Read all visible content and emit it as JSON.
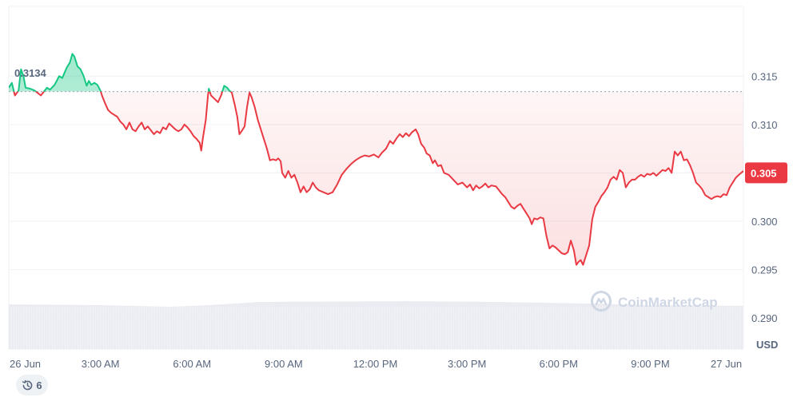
{
  "chart_data": {
    "type": "line",
    "currency_label": "USD",
    "brand": "CoinMarketCap",
    "reference_value": 0.3134,
    "reference_label": "0.3134",
    "current_value": 0.305,
    "current_label": "0.305",
    "ylim": [
      0.2868,
      0.3222
    ],
    "y_ticks": [
      {
        "value": 0.315,
        "label": "0.315"
      },
      {
        "value": 0.31,
        "label": "0.310"
      },
      {
        "value": 0.305,
        "label": "0.305"
      },
      {
        "value": 0.3,
        "label": "0.300"
      },
      {
        "value": 0.295,
        "label": "0.295"
      },
      {
        "value": 0.29,
        "label": "0.290"
      }
    ],
    "x_ticks": [
      {
        "hour": 0,
        "label": "26 Jun"
      },
      {
        "hour": 3,
        "label": "3:00 AM"
      },
      {
        "hour": 6,
        "label": "6:00 AM"
      },
      {
        "hour": 9,
        "label": "9:00 AM"
      },
      {
        "hour": 12,
        "label": "12:00 PM"
      },
      {
        "hour": 15,
        "label": "3:00 PM"
      },
      {
        "hour": 18,
        "label": "6:00 PM"
      },
      {
        "hour": 21,
        "label": "9:00 PM"
      },
      {
        "hour": 24,
        "label": "27 Jun"
      }
    ],
    "x_range_hours": [
      0,
      24.05
    ],
    "colors": {
      "up": "#16c784",
      "down": "#ea3943",
      "grid": "#eff2f5",
      "axis_text": "#58667e",
      "volume": "#e6e9ee"
    },
    "series": [
      {
        "values": [
          [
            0.0,
            0.3138
          ],
          [
            0.1,
            0.3143
          ],
          [
            0.2,
            0.313
          ],
          [
            0.32,
            0.3135
          ],
          [
            0.4,
            0.3157
          ],
          [
            0.48,
            0.315
          ],
          [
            0.55,
            0.3138
          ],
          [
            0.7,
            0.3137
          ],
          [
            0.85,
            0.3135
          ],
          [
            1.05,
            0.313
          ],
          [
            1.25,
            0.3138
          ],
          [
            1.35,
            0.3136
          ],
          [
            1.5,
            0.3141
          ],
          [
            1.65,
            0.315
          ],
          [
            1.75,
            0.3148
          ],
          [
            1.9,
            0.3159
          ],
          [
            2.0,
            0.3164
          ],
          [
            2.08,
            0.3173
          ],
          [
            2.15,
            0.317
          ],
          [
            2.25,
            0.316
          ],
          [
            2.35,
            0.3157
          ],
          [
            2.45,
            0.315
          ],
          [
            2.55,
            0.314
          ],
          [
            2.62,
            0.3145
          ],
          [
            2.7,
            0.3141
          ],
          [
            2.8,
            0.3143
          ],
          [
            2.9,
            0.3141
          ],
          [
            3.0,
            0.3135
          ],
          [
            3.05,
            0.313
          ],
          [
            3.15,
            0.3122
          ],
          [
            3.25,
            0.3115
          ],
          [
            3.35,
            0.3112
          ],
          [
            3.45,
            0.311
          ],
          [
            3.55,
            0.3108
          ],
          [
            3.65,
            0.3103
          ],
          [
            3.75,
            0.31
          ],
          [
            3.85,
            0.3095
          ],
          [
            3.95,
            0.3102
          ],
          [
            4.05,
            0.3095
          ],
          [
            4.15,
            0.3093
          ],
          [
            4.25,
            0.3098
          ],
          [
            4.35,
            0.3102
          ],
          [
            4.45,
            0.3095
          ],
          [
            4.55,
            0.3098
          ],
          [
            4.65,
            0.3094
          ],
          [
            4.75,
            0.309
          ],
          [
            4.85,
            0.3093
          ],
          [
            4.95,
            0.3091
          ],
          [
            5.05,
            0.3097
          ],
          [
            5.15,
            0.3095
          ],
          [
            5.25,
            0.3101
          ],
          [
            5.35,
            0.3098
          ],
          [
            5.45,
            0.3095
          ],
          [
            5.55,
            0.3093
          ],
          [
            5.65,
            0.3095
          ],
          [
            5.75,
            0.31
          ],
          [
            5.85,
            0.3097
          ],
          [
            5.95,
            0.3093
          ],
          [
            6.05,
            0.3088
          ],
          [
            6.15,
            0.3085
          ],
          [
            6.25,
            0.3081
          ],
          [
            6.3,
            0.3073
          ],
          [
            6.35,
            0.3085
          ],
          [
            6.45,
            0.3105
          ],
          [
            6.52,
            0.313
          ],
          [
            6.55,
            0.3137
          ],
          [
            6.62,
            0.313
          ],
          [
            6.75,
            0.3126
          ],
          [
            6.85,
            0.3123
          ],
          [
            6.95,
            0.313
          ],
          [
            7.05,
            0.314
          ],
          [
            7.15,
            0.3138
          ],
          [
            7.22,
            0.3135
          ],
          [
            7.3,
            0.3133
          ],
          [
            7.4,
            0.312
          ],
          [
            7.48,
            0.3108
          ],
          [
            7.55,
            0.309
          ],
          [
            7.62,
            0.3093
          ],
          [
            7.72,
            0.3098
          ],
          [
            7.8,
            0.3118
          ],
          [
            7.88,
            0.3133
          ],
          [
            7.95,
            0.3128
          ],
          [
            8.05,
            0.3118
          ],
          [
            8.15,
            0.3105
          ],
          [
            8.25,
            0.3095
          ],
          [
            8.35,
            0.3085
          ],
          [
            8.45,
            0.3075
          ],
          [
            8.55,
            0.3063
          ],
          [
            8.65,
            0.3064
          ],
          [
            8.75,
            0.3063
          ],
          [
            8.82,
            0.3065
          ],
          [
            8.9,
            0.3062
          ],
          [
            8.95,
            0.305
          ],
          [
            9.05,
            0.3045
          ],
          [
            9.15,
            0.3052
          ],
          [
            9.25,
            0.3045
          ],
          [
            9.35,
            0.3048
          ],
          [
            9.45,
            0.304
          ],
          [
            9.55,
            0.303
          ],
          [
            9.65,
            0.3036
          ],
          [
            9.75,
            0.303
          ],
          [
            9.85,
            0.3033
          ],
          [
            9.95,
            0.304
          ],
          [
            10.05,
            0.3035
          ],
          [
            10.15,
            0.3032
          ],
          [
            10.3,
            0.303
          ],
          [
            10.45,
            0.3028
          ],
          [
            10.6,
            0.303
          ],
          [
            10.75,
            0.3038
          ],
          [
            10.9,
            0.3048
          ],
          [
            11.05,
            0.3054
          ],
          [
            11.2,
            0.3059
          ],
          [
            11.35,
            0.3063
          ],
          [
            11.5,
            0.3066
          ],
          [
            11.65,
            0.3068
          ],
          [
            11.8,
            0.3067
          ],
          [
            11.95,
            0.3069
          ],
          [
            12.1,
            0.3066
          ],
          [
            12.22,
            0.3071
          ],
          [
            12.35,
            0.3075
          ],
          [
            12.48,
            0.3083
          ],
          [
            12.58,
            0.308
          ],
          [
            12.7,
            0.3086
          ],
          [
            12.8,
            0.309
          ],
          [
            12.9,
            0.3087
          ],
          [
            13.0,
            0.3091
          ],
          [
            13.1,
            0.3088
          ],
          [
            13.2,
            0.3092
          ],
          [
            13.32,
            0.3095
          ],
          [
            13.4,
            0.309
          ],
          [
            13.5,
            0.308
          ],
          [
            13.6,
            0.3076
          ],
          [
            13.68,
            0.307
          ],
          [
            13.78,
            0.3068
          ],
          [
            13.88,
            0.306
          ],
          [
            13.95,
            0.3063
          ],
          [
            14.05,
            0.3057
          ],
          [
            14.15,
            0.3058
          ],
          [
            14.25,
            0.305
          ],
          [
            14.4,
            0.3048
          ],
          [
            14.55,
            0.3043
          ],
          [
            14.7,
            0.3038
          ],
          [
            14.85,
            0.304
          ],
          [
            15.0,
            0.3035
          ],
          [
            15.1,
            0.3038
          ],
          [
            15.2,
            0.3032
          ],
          [
            15.3,
            0.3037
          ],
          [
            15.4,
            0.3034
          ],
          [
            15.5,
            0.3036
          ],
          [
            15.6,
            0.3039
          ],
          [
            15.7,
            0.3035
          ],
          [
            15.8,
            0.3037
          ],
          [
            15.95,
            0.3036
          ],
          [
            16.05,
            0.3032
          ],
          [
            16.15,
            0.3028
          ],
          [
            16.25,
            0.3025
          ],
          [
            16.35,
            0.302
          ],
          [
            16.45,
            0.3015
          ],
          [
            16.55,
            0.3013
          ],
          [
            16.65,
            0.3016
          ],
          [
            16.75,
            0.3018
          ],
          [
            16.85,
            0.3013
          ],
          [
            16.95,
            0.3008
          ],
          [
            17.05,
            0.3003
          ],
          [
            17.12,
            0.2997
          ],
          [
            17.2,
            0.3003
          ],
          [
            17.3,
            0.3002
          ],
          [
            17.4,
            0.3004
          ],
          [
            17.5,
            0.3003
          ],
          [
            17.6,
            0.2985
          ],
          [
            17.7,
            0.2972
          ],
          [
            17.8,
            0.2975
          ],
          [
            17.9,
            0.2973
          ],
          [
            18.0,
            0.297
          ],
          [
            18.1,
            0.2967
          ],
          [
            18.2,
            0.2966
          ],
          [
            18.3,
            0.2968
          ],
          [
            18.4,
            0.298
          ],
          [
            18.5,
            0.297
          ],
          [
            18.58,
            0.2955
          ],
          [
            18.65,
            0.2958
          ],
          [
            18.72,
            0.296
          ],
          [
            18.8,
            0.2955
          ],
          [
            18.9,
            0.2965
          ],
          [
            19.0,
            0.2975
          ],
          [
            19.1,
            0.3002
          ],
          [
            19.2,
            0.3015
          ],
          [
            19.3,
            0.302
          ],
          [
            19.4,
            0.3026
          ],
          [
            19.5,
            0.303
          ],
          [
            19.6,
            0.3035
          ],
          [
            19.7,
            0.3043
          ],
          [
            19.8,
            0.3046
          ],
          [
            19.9,
            0.3043
          ],
          [
            20.0,
            0.3053
          ],
          [
            20.1,
            0.305
          ],
          [
            20.2,
            0.3035
          ],
          [
            20.3,
            0.304
          ],
          [
            20.4,
            0.3043
          ],
          [
            20.5,
            0.3043
          ],
          [
            20.6,
            0.3046
          ],
          [
            20.7,
            0.3048
          ],
          [
            20.8,
            0.3046
          ],
          [
            20.9,
            0.3049
          ],
          [
            21.0,
            0.3048
          ],
          [
            21.1,
            0.305
          ],
          [
            21.2,
            0.3047
          ],
          [
            21.3,
            0.305
          ],
          [
            21.4,
            0.3053
          ],
          [
            21.5,
            0.3052
          ],
          [
            21.6,
            0.3055
          ],
          [
            21.7,
            0.305
          ],
          [
            21.8,
            0.3072
          ],
          [
            21.9,
            0.3068
          ],
          [
            22.0,
            0.3072
          ],
          [
            22.1,
            0.3063
          ],
          [
            22.2,
            0.3064
          ],
          [
            22.3,
            0.3058
          ],
          [
            22.4,
            0.305
          ],
          [
            22.5,
            0.304
          ],
          [
            22.6,
            0.3037
          ],
          [
            22.7,
            0.3033
          ],
          [
            22.8,
            0.3027
          ],
          [
            22.9,
            0.3025
          ],
          [
            23.0,
            0.3023
          ],
          [
            23.1,
            0.3025
          ],
          [
            23.2,
            0.3026
          ],
          [
            23.3,
            0.3025
          ],
          [
            23.4,
            0.3028
          ],
          [
            23.5,
            0.3027
          ],
          [
            23.6,
            0.3035
          ],
          [
            23.7,
            0.304
          ],
          [
            23.8,
            0.3045
          ],
          [
            23.9,
            0.3048
          ],
          [
            24.05,
            0.3052
          ]
        ]
      }
    ]
  },
  "controls": {
    "history_badge": "6"
  },
  "icons": {
    "brand_logo": "coinmarketcap-logo-icon",
    "history": "history-clock-icon"
  }
}
